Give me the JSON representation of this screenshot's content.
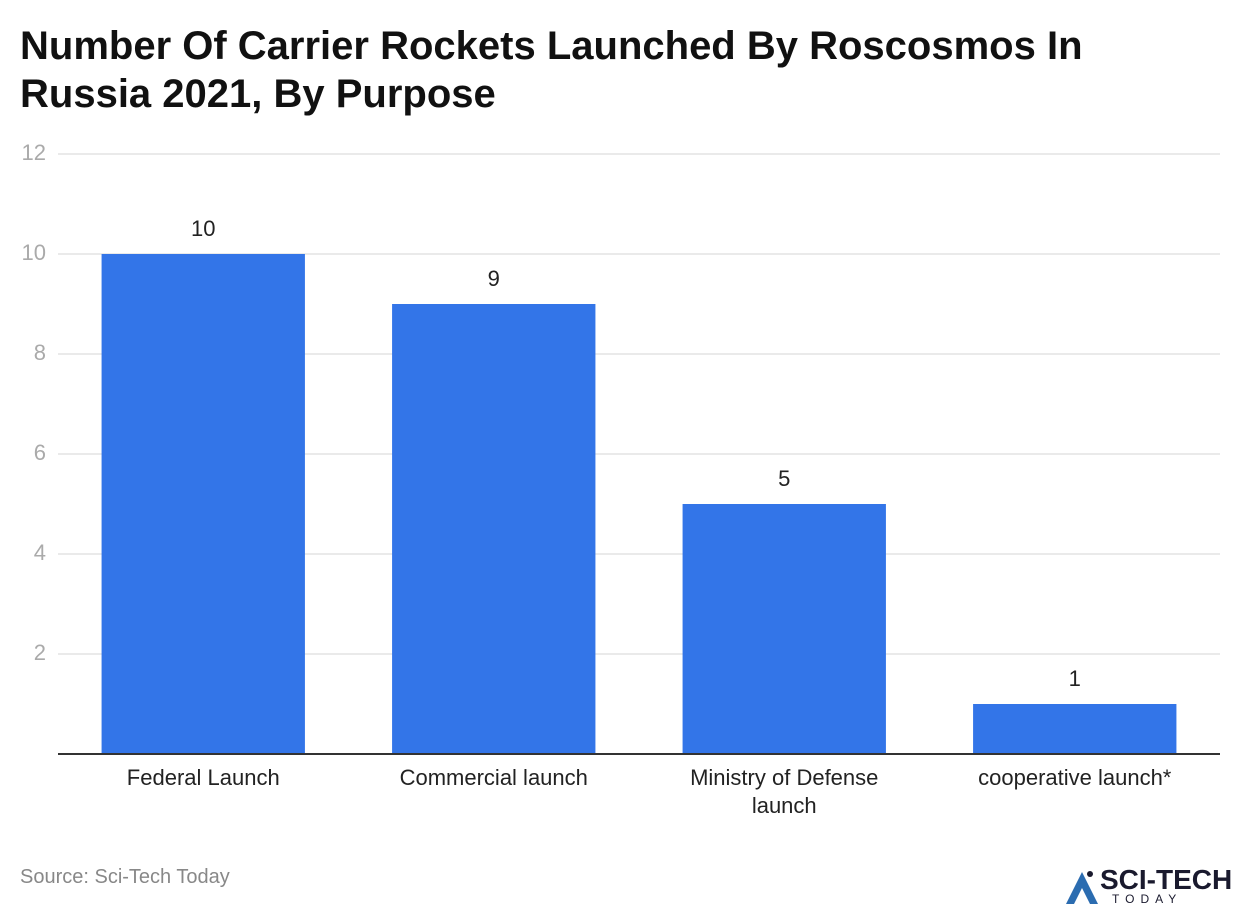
{
  "chart_data": {
    "type": "bar",
    "title": "Number Of Carrier Rockets Launched By Roscosmos In Russia 2021, By Purpose",
    "categories": [
      "Federal Launch",
      "Commercial launch",
      "Ministry of Defense launch",
      "cooperative launch*"
    ],
    "values": [
      10,
      9,
      5,
      1
    ],
    "color": "#3375e8",
    "ylim": [
      0,
      12
    ],
    "yticks": [
      2,
      4,
      6,
      8,
      10,
      12
    ],
    "grid": true,
    "source": "Source: Sci-Tech Today",
    "logo": {
      "name": "SCI-TECH",
      "tagline": "TODAY"
    }
  }
}
